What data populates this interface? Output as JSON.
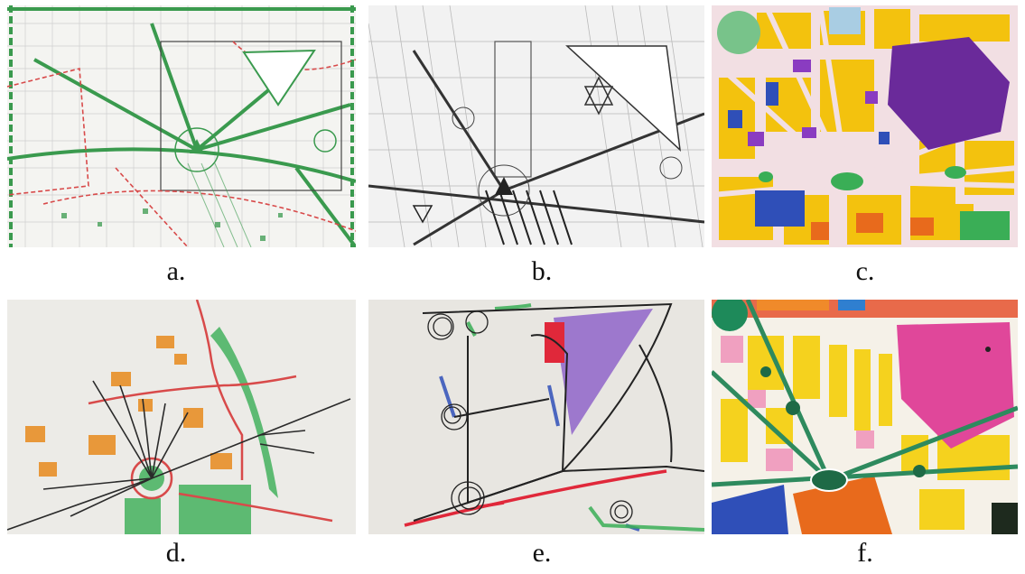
{
  "panels": [
    {
      "id": "a",
      "caption": "a.",
      "image": "map-overlay-sketch-green-red"
    },
    {
      "id": "b",
      "caption": "b.",
      "image": "map-overlay-sketch-grayscale"
    },
    {
      "id": "c",
      "caption": "c.",
      "image": "colored-block-drawing"
    },
    {
      "id": "d",
      "caption": "d.",
      "image": "hand-sketch-radial-plaza"
    },
    {
      "id": "e",
      "caption": "e.",
      "image": "hand-sketch-circles-purple-block"
    },
    {
      "id": "f",
      "caption": "f.",
      "image": "colored-urban-plan"
    }
  ],
  "colors": {
    "green": "#3a9a4e",
    "red": "#d84a4a",
    "yellow": "#f3c20e",
    "purple": "#6a2a9a",
    "blue": "#2f4fb8",
    "magenta": "#e0479a",
    "orange": "#e88a1c",
    "paper": "#efefec"
  }
}
